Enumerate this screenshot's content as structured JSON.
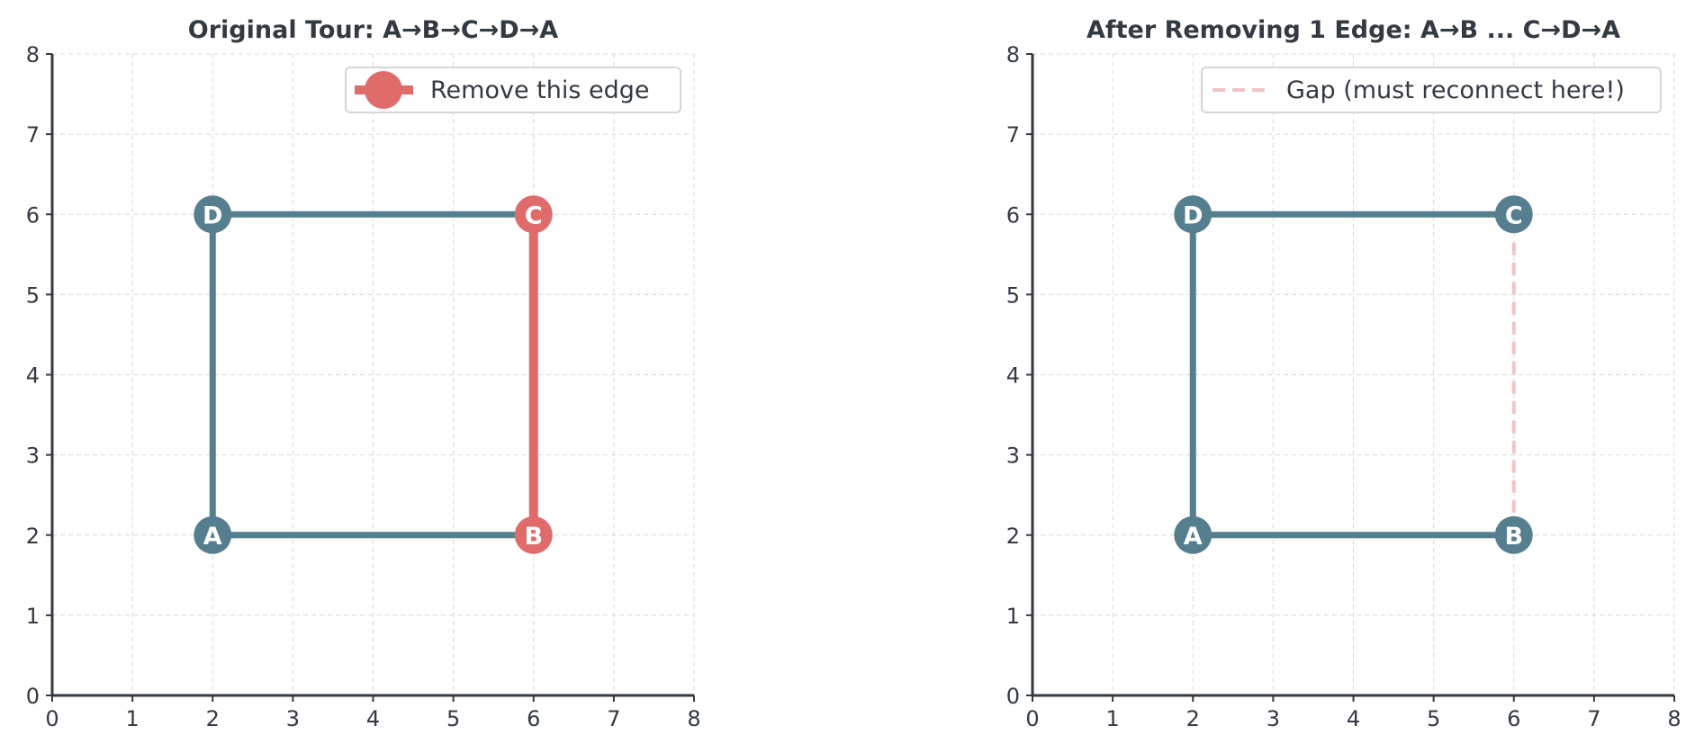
{
  "colors": {
    "edge": "#557f8e",
    "highlight": "#df6b6b",
    "gap": "#f0c4c4",
    "axis": "#343a42",
    "grid": "#d9d9d9",
    "text": "#343a42"
  },
  "chart_data": [
    {
      "type": "line",
      "title": "Original Tour: A→B→C→D→A",
      "xlabel": "",
      "ylabel": "",
      "xlim": [
        0,
        8
      ],
      "ylim": [
        0,
        8
      ],
      "xticks": [
        0,
        1,
        2,
        3,
        4,
        5,
        6,
        7,
        8
      ],
      "yticks": [
        0,
        1,
        2,
        3,
        4,
        5,
        6,
        7,
        8
      ],
      "grid": true,
      "legend_position": "top-right",
      "legend": [
        {
          "label": "Remove this edge",
          "style": "highlight-marker"
        }
      ],
      "nodes": [
        {
          "label": "A",
          "x": 2,
          "y": 2,
          "style": "normal"
        },
        {
          "label": "B",
          "x": 6,
          "y": 2,
          "style": "highlight"
        },
        {
          "label": "C",
          "x": 6,
          "y": 6,
          "style": "highlight"
        },
        {
          "label": "D",
          "x": 2,
          "y": 6,
          "style": "normal"
        }
      ],
      "edges": [
        {
          "from": "A",
          "to": "B",
          "style": "normal"
        },
        {
          "from": "B",
          "to": "C",
          "style": "highlight"
        },
        {
          "from": "C",
          "to": "D",
          "style": "normal"
        },
        {
          "from": "D",
          "to": "A",
          "style": "normal"
        }
      ]
    },
    {
      "type": "line",
      "title": "After Removing 1 Edge: A→B ... C→D→A",
      "xlabel": "",
      "ylabel": "",
      "xlim": [
        0,
        8
      ],
      "ylim": [
        0,
        8
      ],
      "xticks": [
        0,
        1,
        2,
        3,
        4,
        5,
        6,
        7,
        8
      ],
      "yticks": [
        0,
        1,
        2,
        3,
        4,
        5,
        6,
        7,
        8
      ],
      "grid": true,
      "legend_position": "top-right",
      "legend": [
        {
          "label": "Gap (must reconnect here!)",
          "style": "gap-dashed"
        }
      ],
      "nodes": [
        {
          "label": "A",
          "x": 2,
          "y": 2,
          "style": "normal"
        },
        {
          "label": "B",
          "x": 6,
          "y": 2,
          "style": "normal"
        },
        {
          "label": "C",
          "x": 6,
          "y": 6,
          "style": "normal"
        },
        {
          "label": "D",
          "x": 2,
          "y": 6,
          "style": "normal"
        }
      ],
      "edges": [
        {
          "from": "A",
          "to": "B",
          "style": "normal"
        },
        {
          "from": "B",
          "to": "C",
          "style": "gap"
        },
        {
          "from": "C",
          "to": "D",
          "style": "normal"
        },
        {
          "from": "D",
          "to": "A",
          "style": "normal"
        }
      ]
    }
  ]
}
